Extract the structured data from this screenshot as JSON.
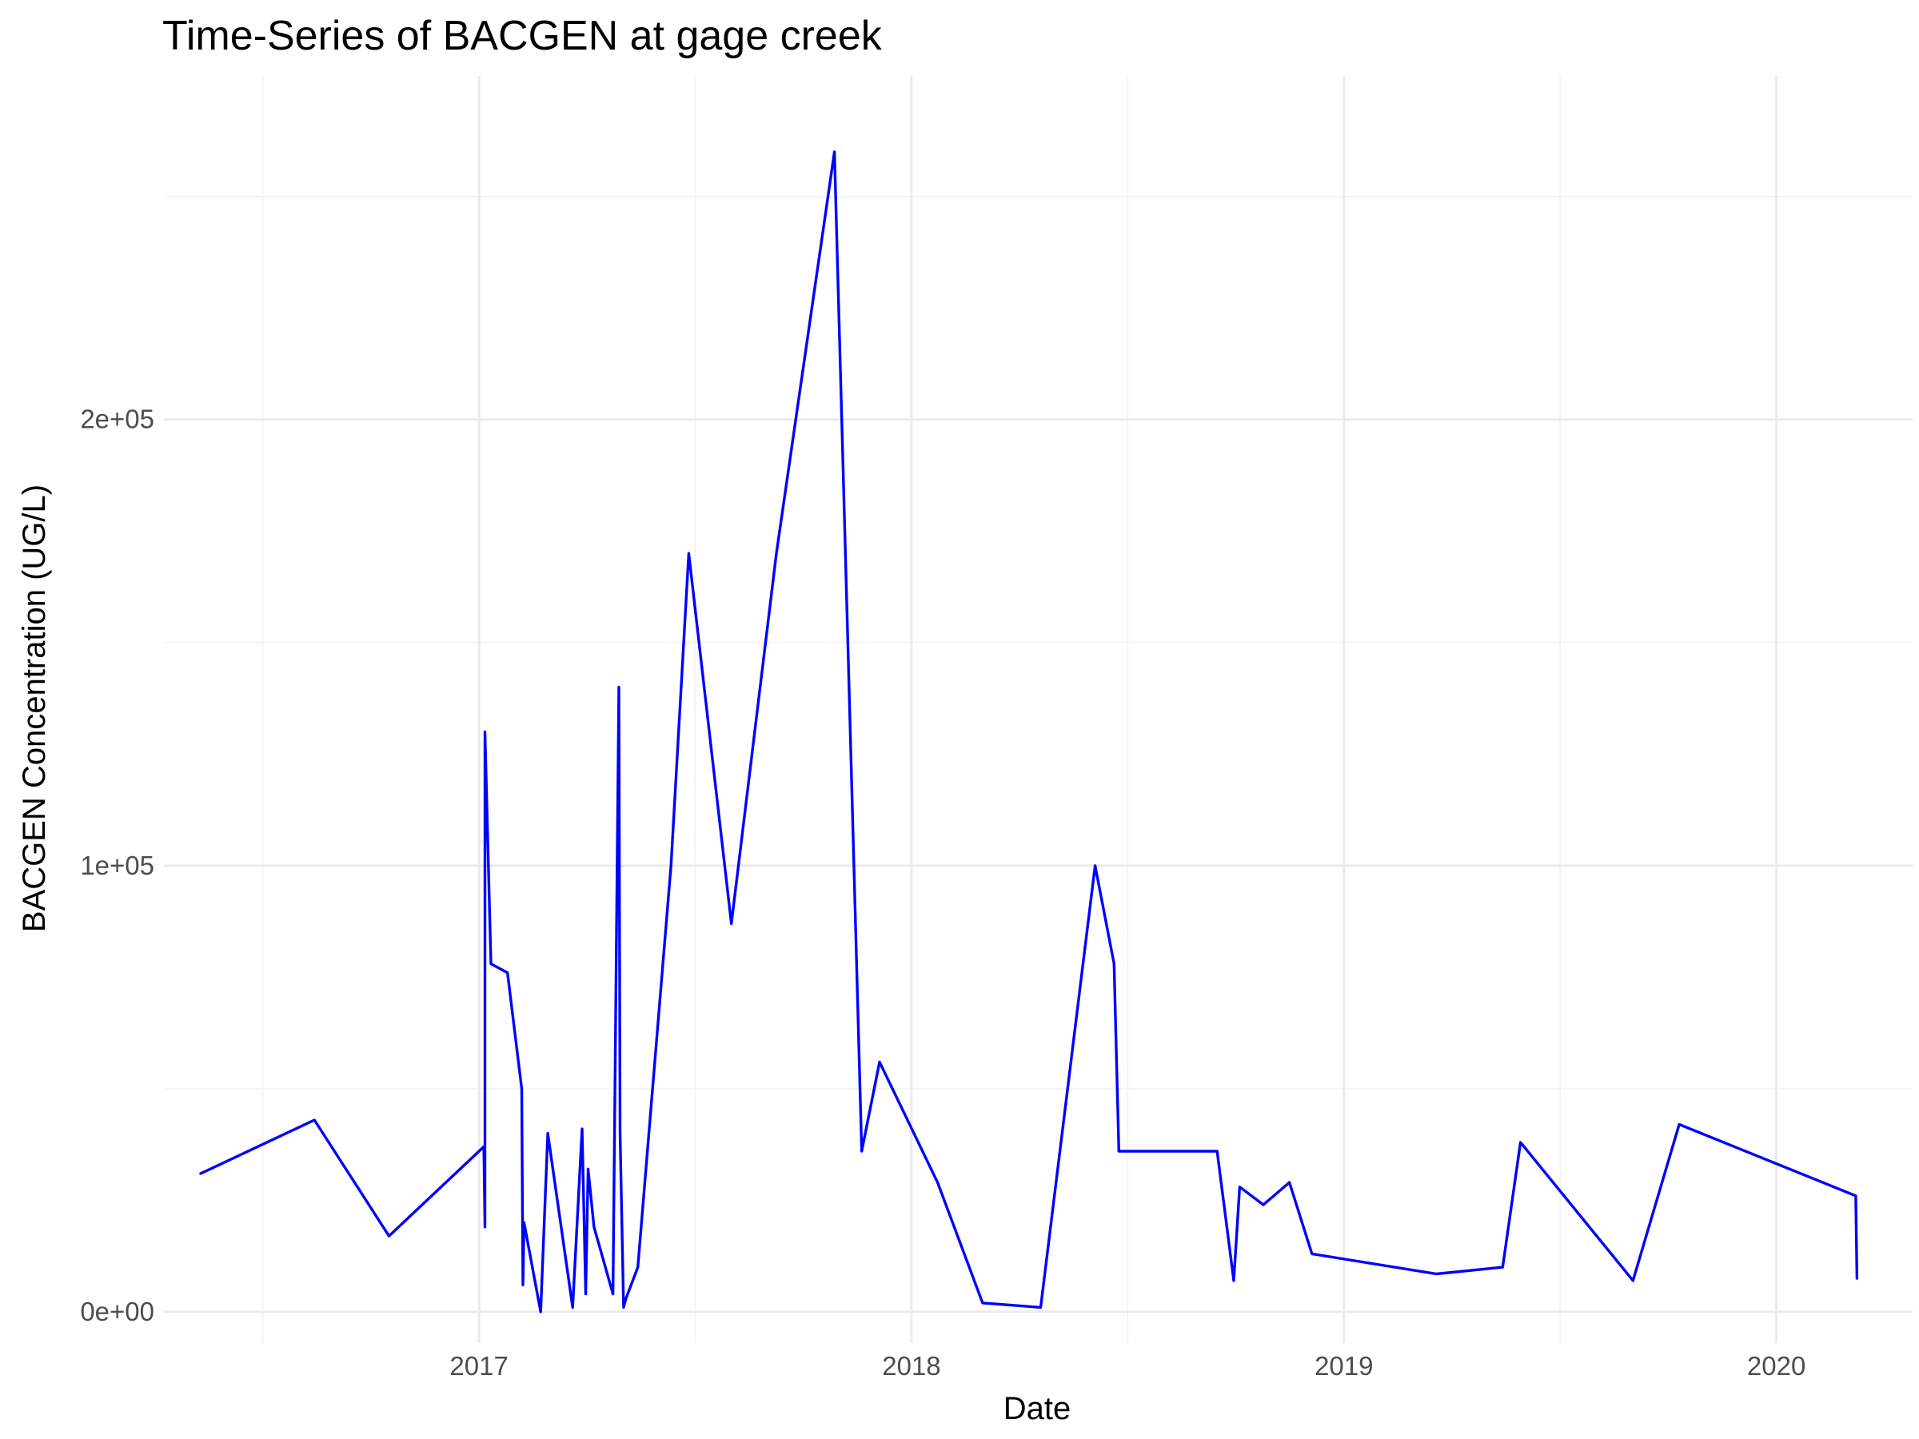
{
  "chart_data": {
    "type": "line",
    "title": "Time-Series of BACGEN at gage creek",
    "xlabel": "Date",
    "ylabel": "BACGEN Concentration (UG/L)",
    "x_ticks": [
      {
        "label": "2017",
        "value": "2017-01-01"
      },
      {
        "label": "2018",
        "value": "2018-01-01"
      },
      {
        "label": "2019",
        "value": "2019-01-01"
      },
      {
        "label": "2020",
        "value": "2020-01-01"
      }
    ],
    "y_ticks": [
      {
        "label": "0e+00",
        "value": 0
      },
      {
        "label": "1e+05",
        "value": 100000
      },
      {
        "label": "2e+05",
        "value": 200000
      }
    ],
    "xlim": [
      "2016-04-10",
      "2020-04-25"
    ],
    "ylim": [
      -7000,
      277000
    ],
    "grid": true,
    "line_color": "#0000ff",
    "series": [
      {
        "x": [
          "2016-05-11",
          "2016-08-15",
          "2016-10-17",
          "2017-01-05",
          "2017-01-06",
          "2017-01-06",
          "2017-01-11",
          "2017-01-25",
          "2017-02-06",
          "2017-02-07",
          "2017-02-08",
          "2017-02-22",
          "2017-02-28",
          "2017-03-21",
          "2017-03-29",
          "2017-04-01",
          "2017-04-03",
          "2017-04-08",
          "2017-04-24",
          "2017-04-29",
          "2017-04-30",
          "2017-05-03",
          "2017-05-05",
          "2017-05-15",
          "2017-06-12",
          "2017-06-27",
          "2017-08-02",
          "2017-09-09",
          "2017-10-28",
          "2017-11-20",
          "2017-12-05",
          "2018-01-23",
          "2018-03-02",
          "2018-04-20",
          "2018-06-05",
          "2018-06-21",
          "2018-06-25",
          "2018-09-16",
          "2018-09-30",
          "2018-10-05",
          "2018-10-25",
          "2018-11-16",
          "2018-12-05",
          "2019-03-20",
          "2019-05-15",
          "2019-05-30",
          "2019-09-02",
          "2019-10-11",
          "2020-03-08",
          "2020-03-09"
        ],
        "y": [
          31000,
          43000,
          17000,
          37000,
          19000,
          130000,
          78000,
          76000,
          50000,
          6000,
          20000,
          0,
          40000,
          1000,
          41000,
          4000,
          32000,
          19000,
          4000,
          140000,
          40000,
          1000,
          3000,
          10000,
          100000,
          170000,
          87000,
          170000,
          260000,
          36000,
          56000,
          29000,
          2000,
          1000,
          100000,
          78000,
          36000,
          36000,
          7000,
          28000,
          24000,
          29000,
          13000,
          8500,
          10000,
          38000,
          7000,
          42000,
          26000,
          7500
        ]
      }
    ]
  }
}
